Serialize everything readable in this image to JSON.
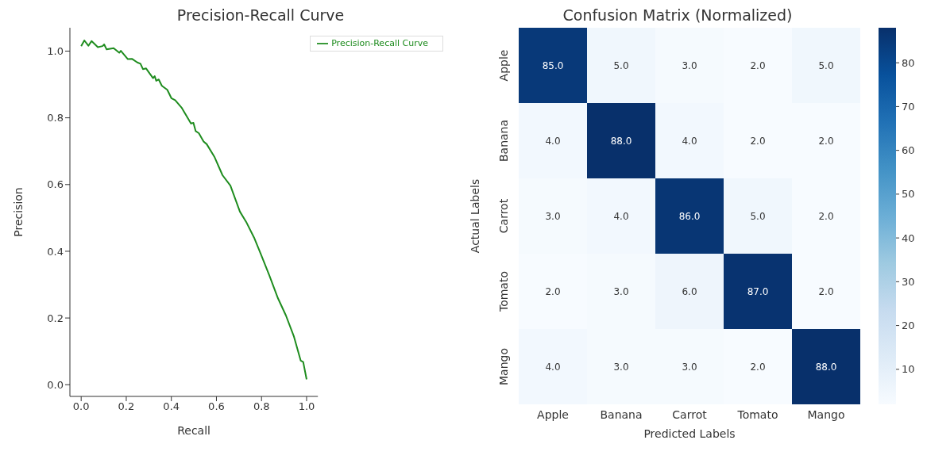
{
  "chart_data": [
    {
      "type": "line",
      "title": "Precision-Recall Curve",
      "xlabel": "Recall",
      "ylabel": "Precision",
      "xlim": [
        -0.05,
        1.05
      ],
      "ylim": [
        -0.035,
        1.07
      ],
      "xticks": [
        {
          "value": 0,
          "label": "0.0"
        },
        0.2,
        0.4,
        0.6,
        0.8,
        {
          "value": 1,
          "label": "1.0"
        }
      ],
      "yticks": [
        {
          "value": 0,
          "label": "0.0"
        },
        0.2,
        0.4,
        0.6,
        0.8,
        {
          "value": 1,
          "label": "1.0"
        }
      ],
      "legend": "top right",
      "grid": false,
      "series": [
        {
          "name": "Precision-Recall Curve",
          "color": "#1e8c1e",
          "x": [
            0.0,
            0.014,
            0.032,
            0.046,
            0.074,
            0.095,
            0.102,
            0.113,
            0.144,
            0.169,
            0.176,
            0.207,
            0.225,
            0.249,
            0.263,
            0.274,
            0.288,
            0.305,
            0.319,
            0.326,
            0.333,
            0.344,
            0.358,
            0.382,
            0.4,
            0.417,
            0.445,
            0.487,
            0.498,
            0.508,
            0.522,
            0.543,
            0.557,
            0.592,
            0.627,
            0.662,
            0.704,
            0.732,
            0.767,
            0.795,
            0.834,
            0.873,
            0.908,
            0.943,
            0.974,
            0.985,
            1.0
          ],
          "values": [
            1.015,
            1.032,
            1.016,
            1.03,
            1.012,
            1.015,
            1.02,
            1.005,
            1.009,
            0.995,
            1.001,
            0.976,
            0.977,
            0.966,
            0.962,
            0.946,
            0.948,
            0.932,
            0.919,
            0.925,
            0.911,
            0.915,
            0.896,
            0.884,
            0.859,
            0.853,
            0.831,
            0.783,
            0.785,
            0.76,
            0.754,
            0.729,
            0.721,
            0.682,
            0.628,
            0.597,
            0.519,
            0.488,
            0.441,
            0.395,
            0.329,
            0.259,
            0.208,
            0.146,
            0.072,
            0.068,
            0.016
          ]
        }
      ]
    },
    {
      "type": "heatmap",
      "title": "Confusion Matrix (Normalized)",
      "xlabel": "Predicted Labels",
      "ylabel": "Actual Labels",
      "categories": [
        "Apple",
        "Banana",
        "Carrot",
        "Tomato",
        "Mango"
      ],
      "y_categories": [
        "Apple",
        "Banana",
        "Carrot",
        "Tomato",
        "Mango"
      ],
      "cells": [
        [
          85,
          5,
          3,
          2,
          5
        ],
        [
          4,
          88,
          4,
          2,
          2
        ],
        [
          3,
          4,
          86,
          5,
          2
        ],
        [
          2,
          3,
          6,
          87,
          2
        ],
        [
          4,
          3,
          3,
          2,
          88
        ]
      ],
      "cell_labels": [
        [
          "85.0",
          "5.0",
          "3.0",
          "2.0",
          "5.0"
        ],
        [
          "4.0",
          "88.0",
          "4.0",
          "2.0",
          "2.0"
        ],
        [
          "3.0",
          "4.0",
          "86.0",
          "5.0",
          "2.0"
        ],
        [
          "2.0",
          "3.0",
          "6.0",
          "87.0",
          "2.0"
        ],
        [
          "4.0",
          "3.0",
          "3.0",
          "2.0",
          "88.0"
        ]
      ],
      "clim": [
        2,
        88
      ],
      "cticks": [
        10,
        20,
        30,
        40,
        50,
        60,
        70,
        80
      ]
    }
  ]
}
